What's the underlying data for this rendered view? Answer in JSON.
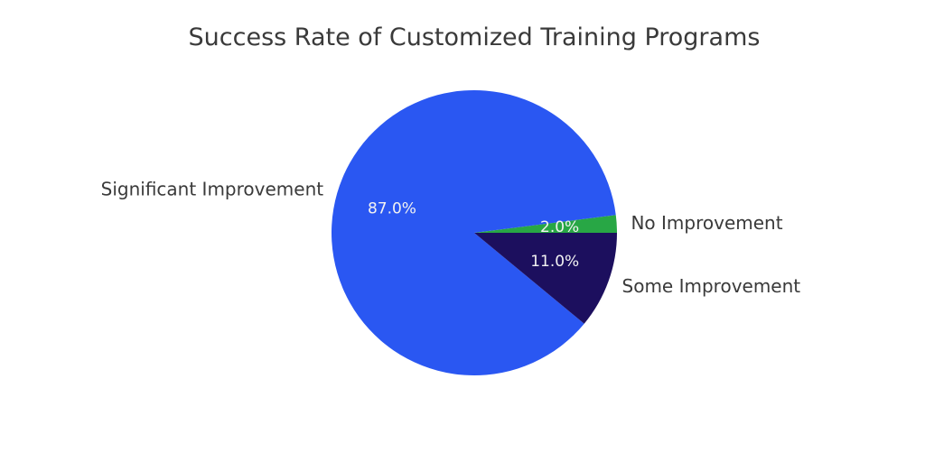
{
  "chart_data": {
    "type": "pie",
    "title": "Success Rate of Customized Training Programs",
    "start_angle_deg": 0,
    "direction": "counterclockwise",
    "slices": [
      {
        "label": "No Improvement",
        "value": 2.0,
        "pct_label": "2.0%",
        "color": "#28a745"
      },
      {
        "label": "Significant Improvement",
        "value": 87.0,
        "pct_label": "87.0%",
        "color": "#2a57f2"
      },
      {
        "label": "Some Improvement",
        "value": 11.0,
        "pct_label": "11.0%",
        "color": "#1c0f5e"
      }
    ]
  }
}
